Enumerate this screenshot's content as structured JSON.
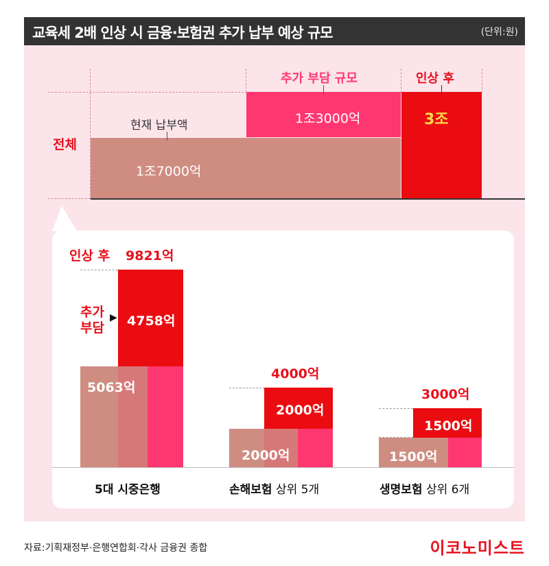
{
  "title": "교육세 2배 인상 시 금융·보험권 추가 납부 예상 규모",
  "unit": "(단위:원)",
  "colors": {
    "current": "#cf8d82",
    "added": "#ff3770",
    "after": "#ea0c10",
    "accent_text": "#e8101e",
    "background": "#fbe4ea",
    "title_bar": "#333333"
  },
  "top_chart": {
    "row_label": "전체",
    "current_label": "현재 납부액",
    "added_label": "추가 부담 규모",
    "after_label": "인상 후",
    "current_value": "1조7000억",
    "added_value": "1조3000억",
    "after_value": "3조"
  },
  "chart_data": {
    "type": "bar",
    "unit": "원",
    "categories": [
      "5대 시중은행",
      "손해보험 상위 5개",
      "생명보험 상위 6개"
    ],
    "series": [
      {
        "name": "현재 납부액",
        "values": [
          5063,
          2000,
          1500
        ]
      },
      {
        "name": "추가 부담",
        "values": [
          4758,
          2000,
          1500
        ]
      },
      {
        "name": "인상 후",
        "values": [
          9821,
          4000,
          3000
        ]
      }
    ],
    "total": {
      "category": "전체",
      "current": 17000,
      "added": 13000,
      "after": 30000
    },
    "value_unit": "억원"
  },
  "bottom_chart": {
    "after_label": "인상 후",
    "added_label_line1": "추가",
    "added_label_line2": "부담",
    "arrow": "▶",
    "groups": [
      {
        "name_bold": "5대 시중은행",
        "name_rest": "",
        "current": "5063억",
        "added": "4758억",
        "total": "9821억"
      },
      {
        "name_bold": "손해보험",
        "name_rest": " 상위 5개",
        "current": "2000억",
        "added": "2000억",
        "total": "4000억"
      },
      {
        "name_bold": "생명보험",
        "name_rest": " 상위 6개",
        "current": "1500억",
        "added": "1500억",
        "total": "3000억"
      }
    ]
  },
  "footer": {
    "source": "자료:기획재정부·은행연합회·각사 금융권 종합",
    "logo": "이코노미스트"
  }
}
